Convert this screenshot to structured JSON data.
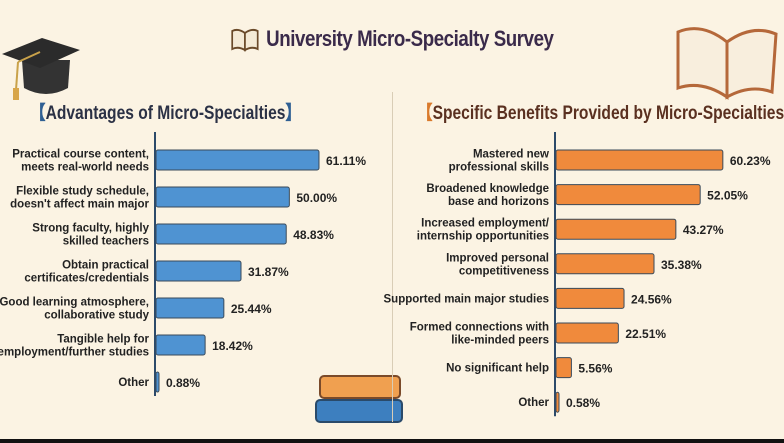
{
  "title": "University Micro-Specialty Survey",
  "colors": {
    "left_bar": "#4f93d2",
    "right_bar": "#f08a3c",
    "text": "#222222"
  },
  "chart_data": [
    {
      "type": "bar",
      "orientation": "horizontal",
      "title": "Advantages of Micro-Specialties",
      "categories": [
        [
          "Practical course content,",
          "meets real-world needs"
        ],
        [
          "Flexible study schedule,",
          "doesn't affect main major"
        ],
        [
          "Strong faculty, highly",
          "skilled teachers"
        ],
        [
          "Obtain practical",
          "certificates/credentials"
        ],
        [
          "Good learning atmosphere,",
          "collaborative study"
        ],
        [
          "Tangible help for",
          "employment/further studies"
        ],
        [
          "Other"
        ]
      ],
      "values": [
        61.11,
        50.0,
        48.83,
        31.87,
        25.44,
        18.42,
        0.88
      ],
      "labels": [
        "61.11%",
        "50.00%",
        "48.83%",
        "31.87%",
        "25.44%",
        "18.42%",
        "0.88%"
      ],
      "unit": "%"
    },
    {
      "type": "bar",
      "orientation": "horizontal",
      "title": "Specific Benefits Provided by Micro-Specialties",
      "categories": [
        [
          "Mastered new",
          "professional skills"
        ],
        [
          "Broadened knowledge",
          "base and horizons"
        ],
        [
          "Increased employment/",
          "internship opportunities"
        ],
        [
          "Improved personal",
          "competitiveness"
        ],
        [
          "Supported main major studies"
        ],
        [
          "Formed connections with",
          "like-minded peers"
        ],
        [
          "No significant help"
        ],
        [
          "Other"
        ]
      ],
      "values": [
        60.23,
        52.05,
        43.27,
        35.38,
        24.56,
        22.51,
        5.56,
        0.58
      ],
      "labels": [
        "60.23%",
        "52.05%",
        "43.27%",
        "35.38%",
        "24.56%",
        "22.51%",
        "5.56%",
        "0.58%"
      ],
      "unit": "%"
    }
  ]
}
